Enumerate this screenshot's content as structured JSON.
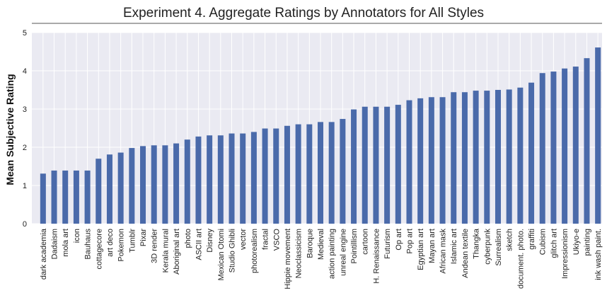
{
  "chart_data": {
    "type": "bar",
    "title": "Experiment 4. Aggregate Ratings by Annotators for All Styles",
    "xlabel": "",
    "ylabel": "Mean Subjective Rating",
    "ylim": [
      0,
      5
    ],
    "yticks": [
      "0",
      "1",
      "2",
      "3",
      "4",
      "5"
    ],
    "grid": true,
    "legend": "none",
    "colors": {
      "bar": "#4a6aaa",
      "plot_bg": "#eaeaf2",
      "grid": "#ffffff",
      "title_rule": "#555555"
    },
    "categories": [
      "dark academia",
      "Dadaism",
      "mola art",
      "icon",
      "Bauhaus",
      "cottagecore",
      "art deco",
      "Pokemon",
      "Tumblr",
      "Pixar",
      "3D render",
      "Kerala mural",
      "Aboriginal art",
      "photo",
      "ASCII art",
      "Disney",
      "Mexican Otomi",
      "Studio Ghibli",
      "vector",
      "photorealism",
      "fractal",
      "VSCO",
      "Hippie movement",
      "Neoclassicism",
      "Baroque",
      "Medieval",
      "action painting",
      "unreal engine",
      "Pointillism",
      "cartoon",
      "H. Renaissance",
      "Futurism",
      "Op art",
      "Pop art",
      "Egyptian art",
      "Mayan art",
      "African mask",
      "Islamic art",
      "Andean textile",
      "Thangka",
      "cyberpunk",
      "Surrealism",
      "sketch",
      "document. photo.",
      "graffiti",
      "Cubism",
      "glitch art",
      "Impressionism",
      "Ukiyo-e",
      "painting",
      "ink wash paint."
    ],
    "values": [
      1.31,
      1.39,
      1.39,
      1.39,
      1.39,
      1.7,
      1.81,
      1.86,
      1.98,
      2.03,
      2.05,
      2.05,
      2.1,
      2.2,
      2.28,
      2.31,
      2.31,
      2.36,
      2.36,
      2.4,
      2.49,
      2.49,
      2.56,
      2.6,
      2.6,
      2.66,
      2.66,
      2.74,
      2.99,
      3.06,
      3.06,
      3.06,
      3.11,
      3.23,
      3.28,
      3.31,
      3.31,
      3.44,
      3.44,
      3.48,
      3.48,
      3.5,
      3.51,
      3.56,
      3.69,
      3.94,
      3.98,
      4.06,
      4.11,
      4.33,
      4.61
    ]
  }
}
